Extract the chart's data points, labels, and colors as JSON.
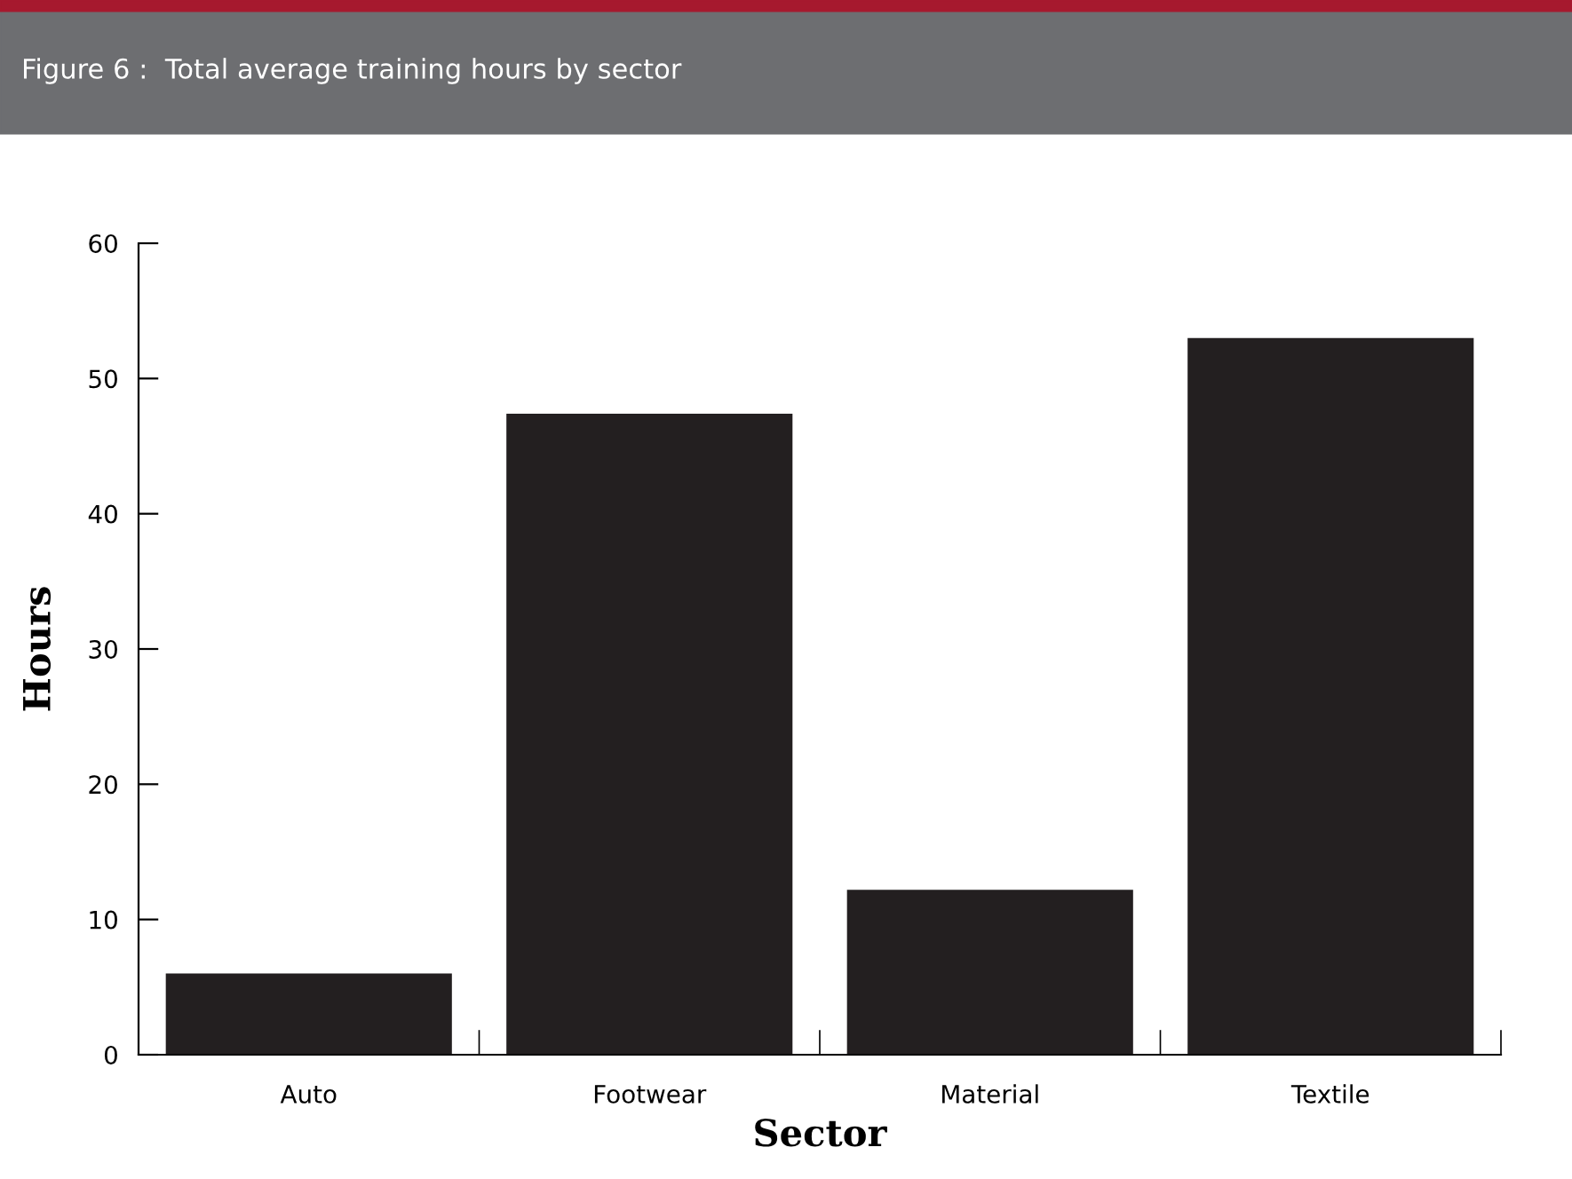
{
  "chart_data": {
    "type": "bar",
    "title": "Figure 6 :  Total average training hours by sector",
    "categories": [
      "Auto",
      "Footwear",
      "Material",
      "Textile"
    ],
    "values": [
      6.0,
      47.4,
      12.2,
      53.0
    ],
    "color": "#231f20",
    "xlabel": "Sector",
    "ylabel": "Hours",
    "ylim": [
      0,
      60
    ],
    "yticks": [
      0,
      10,
      20,
      30,
      40,
      50,
      60
    ],
    "grid": false
  }
}
